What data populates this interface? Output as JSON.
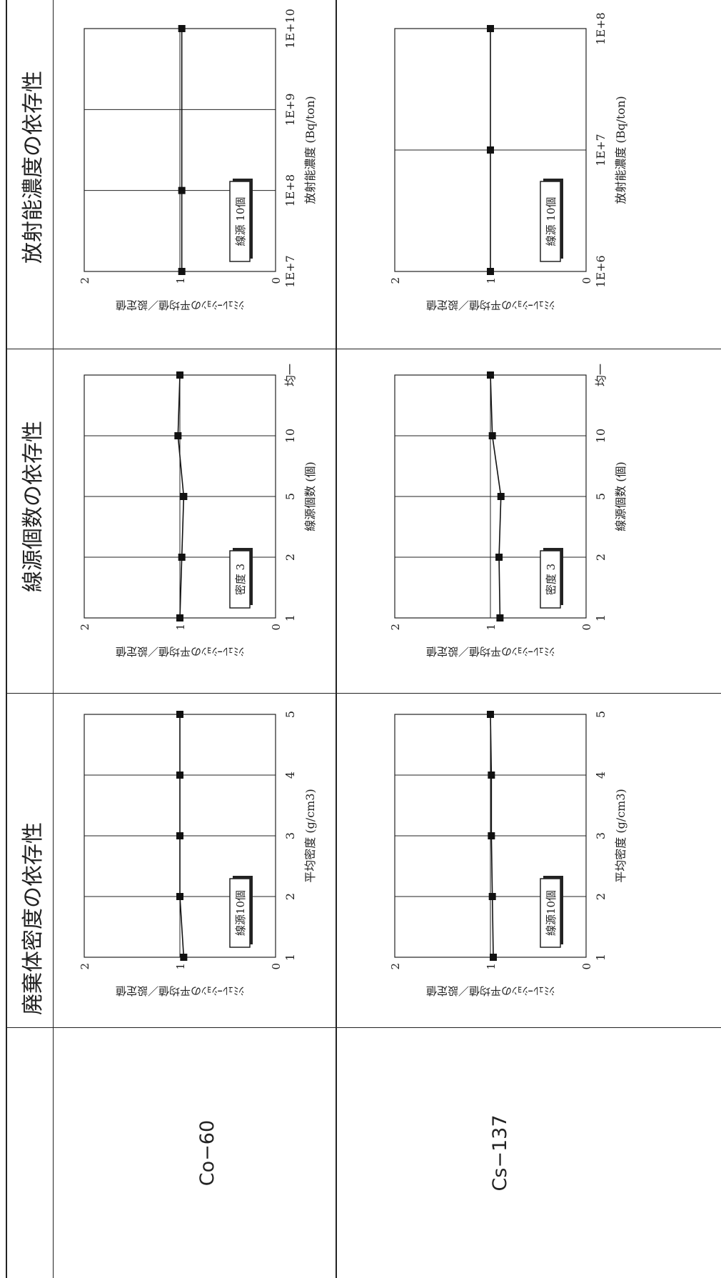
{
  "headers": [
    "廃棄体密度の依存性",
    "線源個数の依存性",
    "放射能濃度の依存性"
  ],
  "isotopes": [
    "Co−60",
    "Cs−137"
  ],
  "ylabel": "ｼﾐｭﾚｰｼｮﾝの平均値／設定値",
  "chart_data": [
    {
      "type": "line",
      "isotope": "Co−60",
      "dependency": "廃棄体密度の依存性",
      "x": [
        1,
        2,
        3,
        4,
        5
      ],
      "categories": [
        "1",
        "2",
        "3",
        "4",
        "5"
      ],
      "series": [
        {
          "values": [
            0.96,
            1.0,
            1.0,
            1.0,
            1.0
          ]
        }
      ],
      "xlabel": "平均密度 (g/cm3)",
      "ylabel": "ｼﾐｭﾚｰｼｮﾝの平均値／設定値",
      "ylim": [
        0,
        2
      ],
      "yticks": [
        "0",
        "1",
        "2"
      ],
      "grid": true,
      "legend": "線源10個",
      "legend_position": "top-left"
    },
    {
      "type": "line",
      "isotope": "Co−60",
      "dependency": "線源個数の依存性",
      "categories": [
        "1",
        "2",
        "5",
        "10",
        "均一"
      ],
      "series": [
        {
          "values": [
            1.0,
            0.98,
            0.96,
            1.02,
            1.0
          ]
        }
      ],
      "xlabel": "線源個数 (個)",
      "ylabel": "ｼﾐｭﾚｰｼｮﾝの平均値／設定値",
      "ylim": [
        0,
        2
      ],
      "yticks": [
        "0",
        "1",
        "2"
      ],
      "grid": true,
      "legend": "密度 3",
      "legend_position": "top-left"
    },
    {
      "type": "line",
      "isotope": "Co−60",
      "dependency": "放射能濃度の依存性",
      "categories": [
        "1E+7",
        "1E+8",
        "1E+9",
        "1E+10"
      ],
      "x": [
        10000000.0,
        100000000.0,
        1000000000.0,
        10000000000.0
      ],
      "xscale": "log",
      "series": [
        {
          "values": [
            0.98,
            0.98,
            null,
            0.98
          ]
        }
      ],
      "xlabel": "放射能濃度 (Bq/ton)",
      "ylabel": "ｼﾐｭﾚｰｼｮﾝの平均値／設定値",
      "ylim": [
        0,
        2
      ],
      "yticks": [
        "0",
        "1",
        "2"
      ],
      "grid": true,
      "legend": "線源 10個",
      "legend_position": "top-left"
    },
    {
      "type": "line",
      "isotope": "Cs−137",
      "dependency": "廃棄体密度の依存性",
      "x": [
        1,
        2,
        3,
        4,
        5
      ],
      "categories": [
        "1",
        "2",
        "3",
        "4",
        "5"
      ],
      "series": [
        {
          "values": [
            0.97,
            0.98,
            0.99,
            0.99,
            1.0
          ]
        }
      ],
      "xlabel": "平均密度 (g/cm3)",
      "ylabel": "ｼﾐｭﾚｰｼｮﾝの平均値／設定値",
      "ylim": [
        0,
        2
      ],
      "yticks": [
        "0",
        "1",
        "2"
      ],
      "grid": true,
      "legend": "線源10個",
      "legend_position": "top-left"
    },
    {
      "type": "line",
      "isotope": "Cs−137",
      "dependency": "線源個数の依存性",
      "categories": [
        "1",
        "2",
        "5",
        "10",
        "均一"
      ],
      "series": [
        {
          "values": [
            0.9,
            0.91,
            0.89,
            0.98,
            1.0
          ]
        }
      ],
      "xlabel": "線源個数 (個)",
      "ylabel": "ｼﾐｭﾚｰｼｮﾝの平均値／設定値",
      "ylim": [
        0,
        2
      ],
      "yticks": [
        "0",
        "1",
        "2"
      ],
      "grid": true,
      "legend": "密度 3",
      "legend_position": "top-left"
    },
    {
      "type": "line",
      "isotope": "Cs−137",
      "dependency": "放射能濃度の依存性",
      "categories": [
        "1E+6",
        "1E+7",
        "1E+8"
      ],
      "x": [
        1000000.0,
        10000000.0,
        100000000.0
      ],
      "xscale": "log",
      "series": [
        {
          "values": [
            1.0,
            1.0,
            1.0
          ]
        }
      ],
      "xlabel": "放射能濃度 (Bq/ton)",
      "ylabel": "ｼﾐｭﾚｰｼｮﾝの平均値／設定値",
      "ylim": [
        0,
        2
      ],
      "yticks": [
        "0",
        "1",
        "2"
      ],
      "grid": true,
      "legend": "線源 10個",
      "legend_position": "top-left"
    }
  ]
}
